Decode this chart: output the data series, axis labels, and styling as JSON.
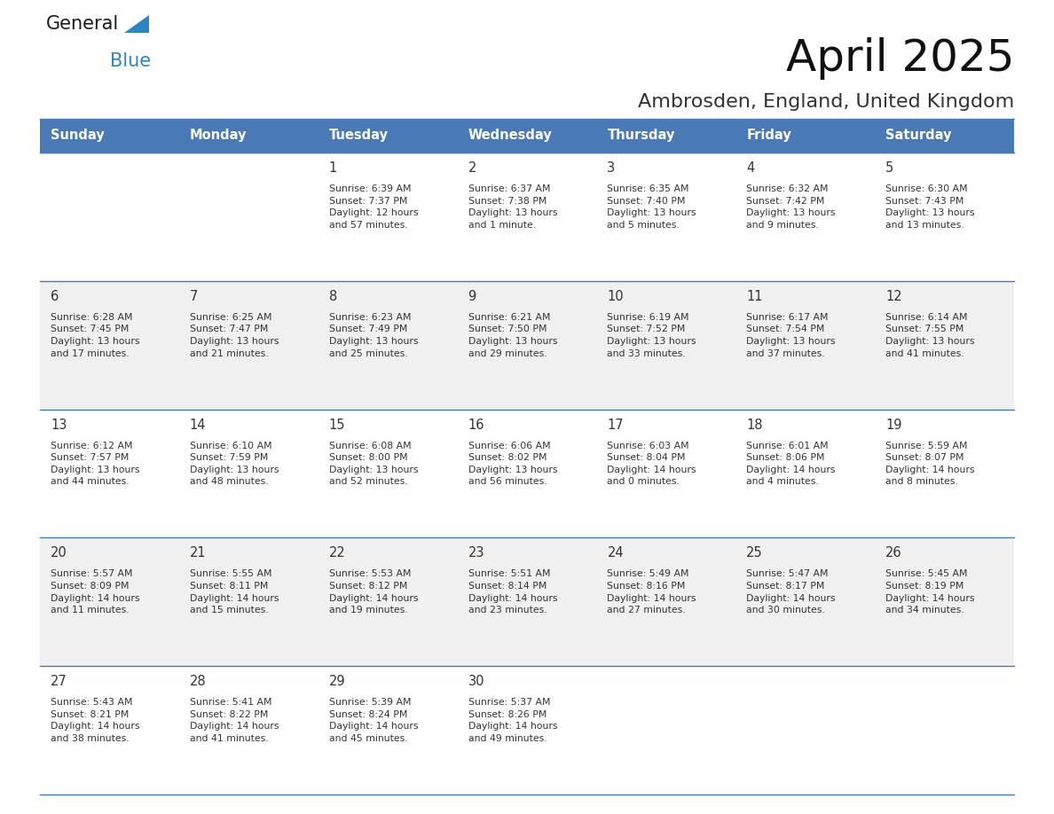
{
  "title": "April 2025",
  "subtitle": "Ambrosden, England, United Kingdom",
  "days_of_week": [
    "Sunday",
    "Monday",
    "Tuesday",
    "Wednesday",
    "Thursday",
    "Friday",
    "Saturday"
  ],
  "header_bg": "#4a7ab5",
  "header_text": "#FFFFFF",
  "row_bg_odd": "#FFFFFF",
  "row_bg_even": "#F0F0F0",
  "text_color": "#333333",
  "divider_color": "#4a7ab5",
  "calendar_data": [
    [
      {
        "day": "",
        "info": ""
      },
      {
        "day": "",
        "info": ""
      },
      {
        "day": "1",
        "info": "Sunrise: 6:39 AM\nSunset: 7:37 PM\nDaylight: 12 hours\nand 57 minutes."
      },
      {
        "day": "2",
        "info": "Sunrise: 6:37 AM\nSunset: 7:38 PM\nDaylight: 13 hours\nand 1 minute."
      },
      {
        "day": "3",
        "info": "Sunrise: 6:35 AM\nSunset: 7:40 PM\nDaylight: 13 hours\nand 5 minutes."
      },
      {
        "day": "4",
        "info": "Sunrise: 6:32 AM\nSunset: 7:42 PM\nDaylight: 13 hours\nand 9 minutes."
      },
      {
        "day": "5",
        "info": "Sunrise: 6:30 AM\nSunset: 7:43 PM\nDaylight: 13 hours\nand 13 minutes."
      }
    ],
    [
      {
        "day": "6",
        "info": "Sunrise: 6:28 AM\nSunset: 7:45 PM\nDaylight: 13 hours\nand 17 minutes."
      },
      {
        "day": "7",
        "info": "Sunrise: 6:25 AM\nSunset: 7:47 PM\nDaylight: 13 hours\nand 21 minutes."
      },
      {
        "day": "8",
        "info": "Sunrise: 6:23 AM\nSunset: 7:49 PM\nDaylight: 13 hours\nand 25 minutes."
      },
      {
        "day": "9",
        "info": "Sunrise: 6:21 AM\nSunset: 7:50 PM\nDaylight: 13 hours\nand 29 minutes."
      },
      {
        "day": "10",
        "info": "Sunrise: 6:19 AM\nSunset: 7:52 PM\nDaylight: 13 hours\nand 33 minutes."
      },
      {
        "day": "11",
        "info": "Sunrise: 6:17 AM\nSunset: 7:54 PM\nDaylight: 13 hours\nand 37 minutes."
      },
      {
        "day": "12",
        "info": "Sunrise: 6:14 AM\nSunset: 7:55 PM\nDaylight: 13 hours\nand 41 minutes."
      }
    ],
    [
      {
        "day": "13",
        "info": "Sunrise: 6:12 AM\nSunset: 7:57 PM\nDaylight: 13 hours\nand 44 minutes."
      },
      {
        "day": "14",
        "info": "Sunrise: 6:10 AM\nSunset: 7:59 PM\nDaylight: 13 hours\nand 48 minutes."
      },
      {
        "day": "15",
        "info": "Sunrise: 6:08 AM\nSunset: 8:00 PM\nDaylight: 13 hours\nand 52 minutes."
      },
      {
        "day": "16",
        "info": "Sunrise: 6:06 AM\nSunset: 8:02 PM\nDaylight: 13 hours\nand 56 minutes."
      },
      {
        "day": "17",
        "info": "Sunrise: 6:03 AM\nSunset: 8:04 PM\nDaylight: 14 hours\nand 0 minutes."
      },
      {
        "day": "18",
        "info": "Sunrise: 6:01 AM\nSunset: 8:06 PM\nDaylight: 14 hours\nand 4 minutes."
      },
      {
        "day": "19",
        "info": "Sunrise: 5:59 AM\nSunset: 8:07 PM\nDaylight: 14 hours\nand 8 minutes."
      }
    ],
    [
      {
        "day": "20",
        "info": "Sunrise: 5:57 AM\nSunset: 8:09 PM\nDaylight: 14 hours\nand 11 minutes."
      },
      {
        "day": "21",
        "info": "Sunrise: 5:55 AM\nSunset: 8:11 PM\nDaylight: 14 hours\nand 15 minutes."
      },
      {
        "day": "22",
        "info": "Sunrise: 5:53 AM\nSunset: 8:12 PM\nDaylight: 14 hours\nand 19 minutes."
      },
      {
        "day": "23",
        "info": "Sunrise: 5:51 AM\nSunset: 8:14 PM\nDaylight: 14 hours\nand 23 minutes."
      },
      {
        "day": "24",
        "info": "Sunrise: 5:49 AM\nSunset: 8:16 PM\nDaylight: 14 hours\nand 27 minutes."
      },
      {
        "day": "25",
        "info": "Sunrise: 5:47 AM\nSunset: 8:17 PM\nDaylight: 14 hours\nand 30 minutes."
      },
      {
        "day": "26",
        "info": "Sunrise: 5:45 AM\nSunset: 8:19 PM\nDaylight: 14 hours\nand 34 minutes."
      }
    ],
    [
      {
        "day": "27",
        "info": "Sunrise: 5:43 AM\nSunset: 8:21 PM\nDaylight: 14 hours\nand 38 minutes."
      },
      {
        "day": "28",
        "info": "Sunrise: 5:41 AM\nSunset: 8:22 PM\nDaylight: 14 hours\nand 41 minutes."
      },
      {
        "day": "29",
        "info": "Sunrise: 5:39 AM\nSunset: 8:24 PM\nDaylight: 14 hours\nand 45 minutes."
      },
      {
        "day": "30",
        "info": "Sunrise: 5:37 AM\nSunset: 8:26 PM\nDaylight: 14 hours\nand 49 minutes."
      },
      {
        "day": "",
        "info": ""
      },
      {
        "day": "",
        "info": ""
      },
      {
        "day": "",
        "info": ""
      }
    ]
  ],
  "logo_general_color": "#1a1a1a",
  "logo_blue_color": "#2E86C1",
  "figsize": [
    11.88,
    9.18
  ],
  "dpi": 100
}
